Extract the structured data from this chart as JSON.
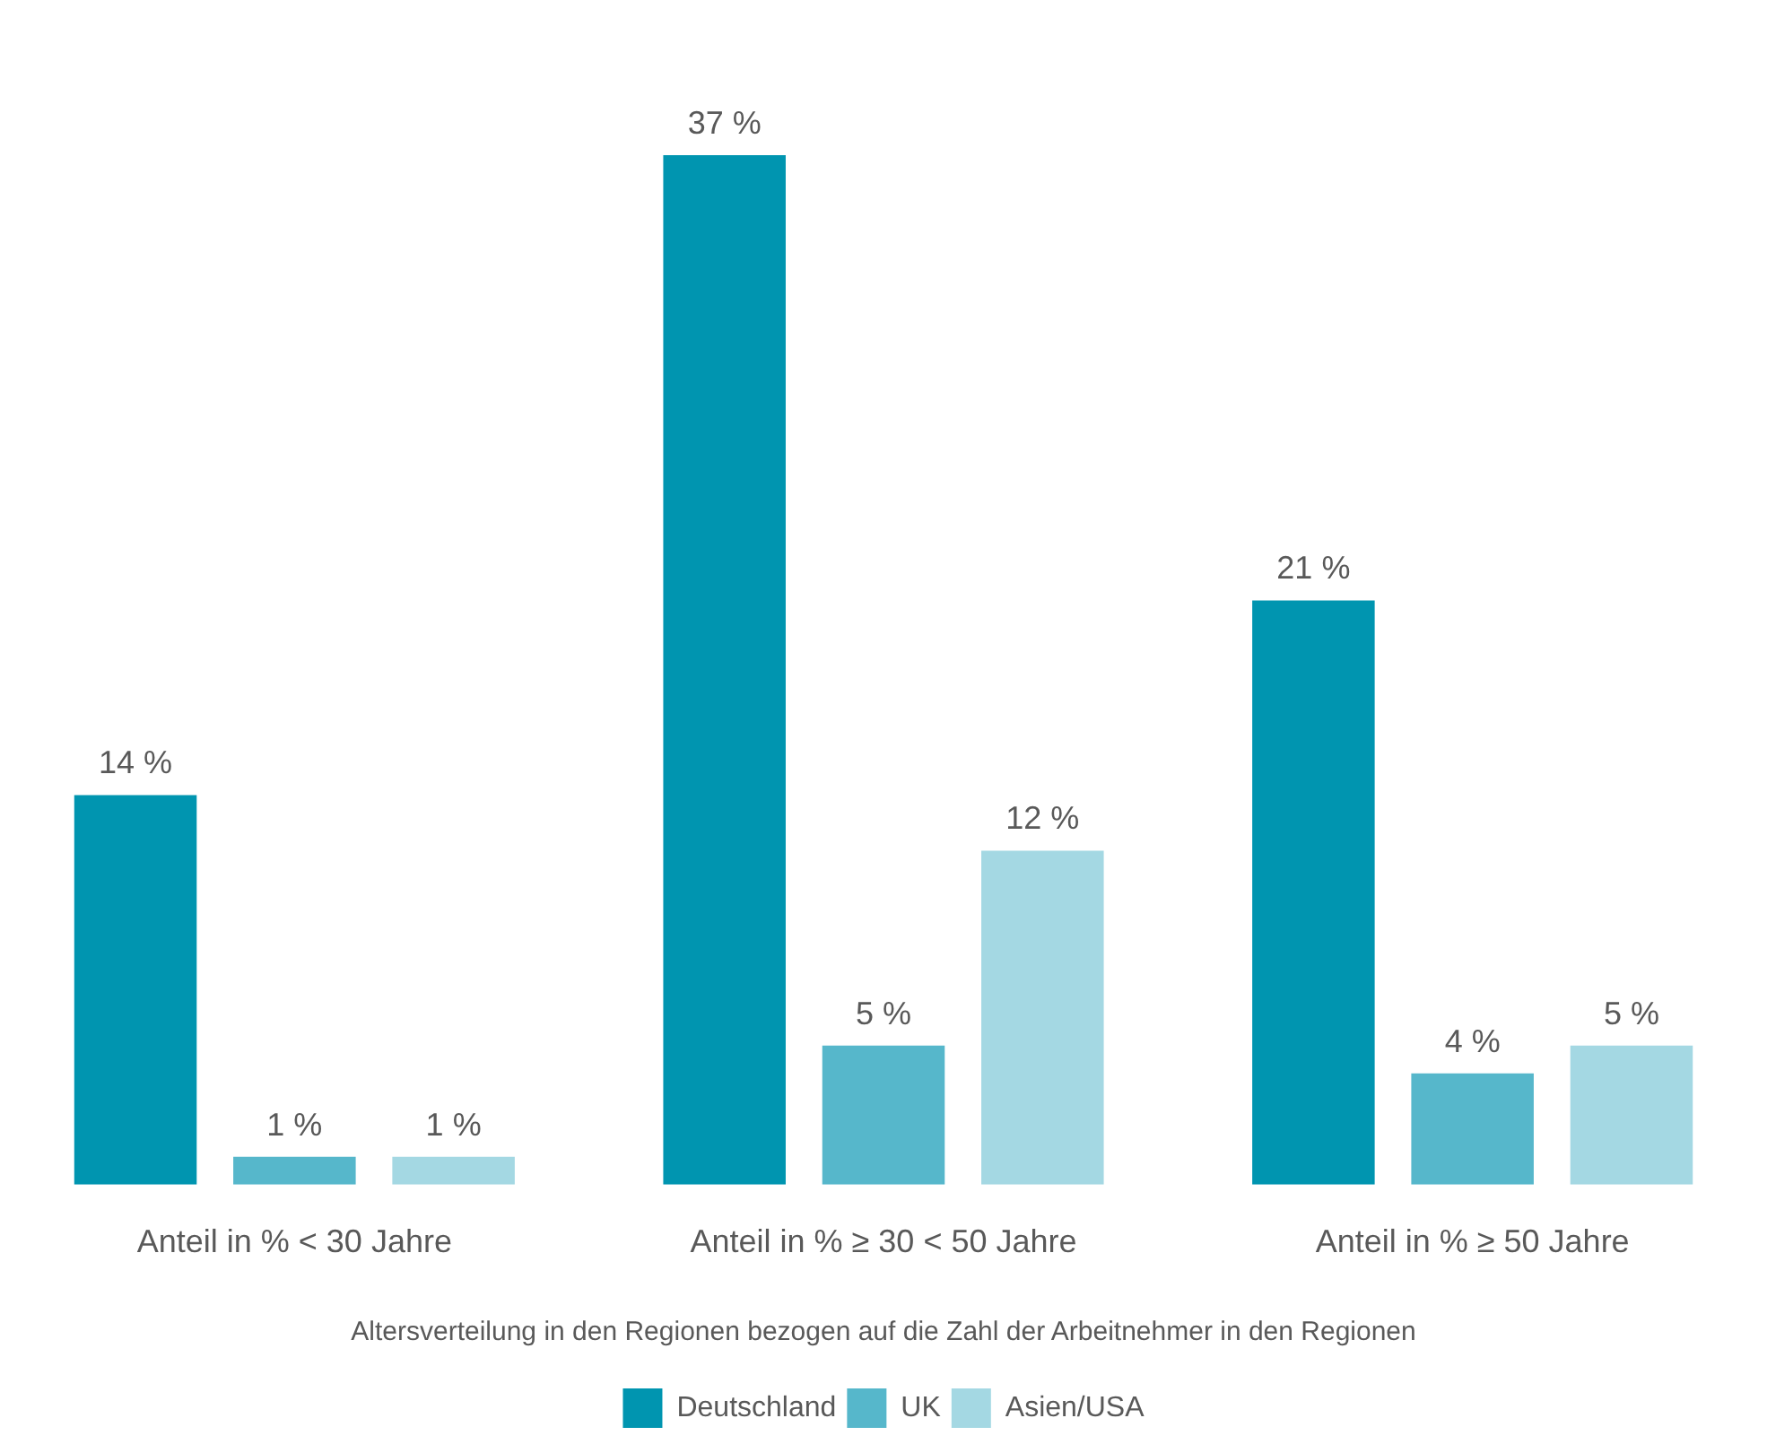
{
  "chart_data": {
    "type": "bar",
    "xlabel": "Altersverteilung in den Regionen bezogen auf die Zahl der Arbeitnehmer in den Regionen",
    "categories": [
      "Anteil in % < 30 Jahre",
      "Anteil in % ≥ 30 < 50 Jahre",
      "Anteil in % ≥ 50 Jahre"
    ],
    "series": [
      {
        "name": "Deutschland",
        "color": "#0095b0",
        "values": [
          14,
          37,
          21
        ],
        "value_labels": [
          "14 %",
          "37 %",
          "21 %"
        ]
      },
      {
        "name": "UK",
        "color": "#56b7cb",
        "values": [
          1,
          5,
          4
        ],
        "value_labels": [
          "1 %",
          "5 %",
          "4 %"
        ]
      },
      {
        "name": "Asien/USA",
        "color": "#a4d8e3",
        "values": [
          1,
          12,
          5
        ],
        "value_labels": [
          "1 %",
          "12 %",
          "5 %"
        ]
      }
    ],
    "grid": false,
    "legend": "bottom"
  }
}
